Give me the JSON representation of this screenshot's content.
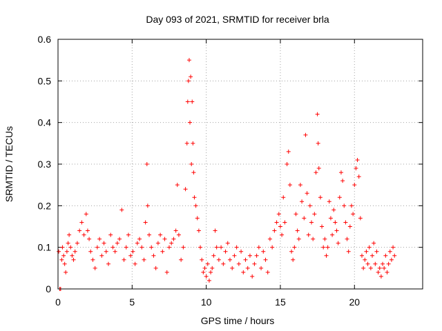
{
  "chart_data": {
    "type": "scatter",
    "title": "Day 093 of 2021, SRMTID for receiver brla",
    "xlabel": "GPS time / hours",
    "ylabel": "SRMTID / TECUs",
    "xlim": [
      0,
      24.6
    ],
    "ylim": [
      0,
      0.6
    ],
    "xticks": [
      0,
      5,
      10,
      15,
      20
    ],
    "xtick_labels": [
      "0",
      "5",
      "10",
      "15",
      "20"
    ],
    "yticks": [
      0,
      0.1,
      0.2,
      0.3,
      0.4,
      0.5,
      0.6
    ],
    "ytick_labels": [
      "0",
      "0.1",
      "0.2",
      "0.3",
      "0.4",
      "0.5",
      "0.6"
    ],
    "grid": true,
    "marker": "+",
    "color": "#ff0000",
    "series": [
      {
        "name": "SRMTID",
        "points": [
          [
            0.05,
            0.09
          ],
          [
            0.12,
            0.0
          ],
          [
            0.18,
            0.0
          ],
          [
            0.25,
            0.07
          ],
          [
            0.3,
            0.1
          ],
          [
            0.38,
            0.08
          ],
          [
            0.45,
            0.06
          ],
          [
            0.52,
            0.04
          ],
          [
            0.6,
            0.09
          ],
          [
            0.68,
            0.11
          ],
          [
            0.75,
            0.13
          ],
          [
            0.85,
            0.1
          ],
          [
            0.95,
            0.08
          ],
          [
            1.05,
            0.07
          ],
          [
            1.15,
            0.09
          ],
          [
            1.3,
            0.11
          ],
          [
            1.45,
            0.14
          ],
          [
            1.6,
            0.16
          ],
          [
            1.75,
            0.13
          ],
          [
            1.9,
            0.18
          ],
          [
            2.0,
            0.14
          ],
          [
            2.1,
            0.12
          ],
          [
            2.2,
            0.09
          ],
          [
            2.35,
            0.07
          ],
          [
            2.5,
            0.05
          ],
          [
            2.65,
            0.1
          ],
          [
            2.8,
            0.12
          ],
          [
            2.95,
            0.08
          ],
          [
            3.1,
            0.11
          ],
          [
            3.25,
            0.09
          ],
          [
            3.4,
            0.06
          ],
          [
            3.55,
            0.13
          ],
          [
            3.7,
            0.1
          ],
          [
            3.85,
            0.09
          ],
          [
            4.0,
            0.11
          ],
          [
            4.15,
            0.12
          ],
          [
            4.3,
            0.19
          ],
          [
            4.45,
            0.07
          ],
          [
            4.6,
            0.1
          ],
          [
            4.75,
            0.13
          ],
          [
            4.9,
            0.08
          ],
          [
            5.05,
            0.09
          ],
          [
            5.2,
            0.06
          ],
          [
            5.35,
            0.11
          ],
          [
            5.5,
            0.12
          ],
          [
            5.65,
            0.1
          ],
          [
            5.8,
            0.07
          ],
          [
            5.9,
            0.16
          ],
          [
            6.0,
            0.3
          ],
          [
            6.05,
            0.2
          ],
          [
            6.15,
            0.13
          ],
          [
            6.3,
            0.1
          ],
          [
            6.45,
            0.08
          ],
          [
            6.6,
            0.05
          ],
          [
            6.75,
            0.11
          ],
          [
            6.9,
            0.13
          ],
          [
            7.05,
            0.09
          ],
          [
            7.2,
            0.12
          ],
          [
            7.35,
            0.04
          ],
          [
            7.5,
            0.1
          ],
          [
            7.65,
            0.11
          ],
          [
            7.8,
            0.12
          ],
          [
            7.95,
            0.14
          ],
          [
            8.05,
            0.25
          ],
          [
            8.15,
            0.13
          ],
          [
            8.3,
            0.07
          ],
          [
            8.45,
            0.1
          ],
          [
            8.6,
            0.24
          ],
          [
            8.7,
            0.35
          ],
          [
            8.75,
            0.45
          ],
          [
            8.8,
            0.5
          ],
          [
            8.85,
            0.55
          ],
          [
            8.9,
            0.4
          ],
          [
            8.95,
            0.51
          ],
          [
            9.0,
            0.3
          ],
          [
            9.05,
            0.45
          ],
          [
            9.1,
            0.35
          ],
          [
            9.15,
            0.28
          ],
          [
            9.2,
            0.22
          ],
          [
            9.3,
            0.2
          ],
          [
            9.4,
            0.17
          ],
          [
            9.5,
            0.14
          ],
          [
            9.6,
            0.1
          ],
          [
            9.7,
            0.07
          ],
          [
            9.8,
            0.04
          ],
          [
            9.9,
            0.05
          ],
          [
            10.0,
            0.03
          ],
          [
            10.1,
            0.06
          ],
          [
            10.2,
            0.02
          ],
          [
            10.3,
            0.04
          ],
          [
            10.4,
            0.05
          ],
          [
            10.5,
            0.08
          ],
          [
            10.6,
            0.14
          ],
          [
            10.7,
            0.1
          ],
          [
            10.85,
            0.07
          ],
          [
            11.0,
            0.1
          ],
          [
            11.15,
            0.06
          ],
          [
            11.3,
            0.09
          ],
          [
            11.45,
            0.11
          ],
          [
            11.6,
            0.07
          ],
          [
            11.75,
            0.05
          ],
          [
            11.9,
            0.08
          ],
          [
            12.05,
            0.1
          ],
          [
            12.2,
            0.06
          ],
          [
            12.35,
            0.09
          ],
          [
            12.5,
            0.04
          ],
          [
            12.65,
            0.07
          ],
          [
            12.8,
            0.05
          ],
          [
            12.95,
            0.08
          ],
          [
            13.1,
            0.03
          ],
          [
            13.25,
            0.06
          ],
          [
            13.4,
            0.08
          ],
          [
            13.55,
            0.1
          ],
          [
            13.7,
            0.05
          ],
          [
            13.85,
            0.09
          ],
          [
            14.0,
            0.07
          ],
          [
            14.15,
            0.04
          ],
          [
            14.3,
            0.12
          ],
          [
            14.45,
            0.1
          ],
          [
            14.6,
            0.14
          ],
          [
            14.75,
            0.16
          ],
          [
            14.9,
            0.18
          ],
          [
            15.0,
            0.15
          ],
          [
            15.1,
            0.13
          ],
          [
            15.2,
            0.22
          ],
          [
            15.3,
            0.16
          ],
          [
            15.45,
            0.3
          ],
          [
            15.55,
            0.33
          ],
          [
            15.65,
            0.25
          ],
          [
            15.75,
            0.09
          ],
          [
            15.85,
            0.07
          ],
          [
            15.95,
            0.1
          ],
          [
            16.05,
            0.18
          ],
          [
            16.15,
            0.14
          ],
          [
            16.25,
            0.12
          ],
          [
            16.35,
            0.25
          ],
          [
            16.45,
            0.21
          ],
          [
            16.6,
            0.17
          ],
          [
            16.7,
            0.37
          ],
          [
            16.8,
            0.23
          ],
          [
            16.9,
            0.13
          ],
          [
            17.0,
            0.2
          ],
          [
            17.1,
            0.16
          ],
          [
            17.2,
            0.12
          ],
          [
            17.3,
            0.18
          ],
          [
            17.4,
            0.28
          ],
          [
            17.5,
            0.42
          ],
          [
            17.55,
            0.35
          ],
          [
            17.6,
            0.29
          ],
          [
            17.7,
            0.22
          ],
          [
            17.8,
            0.15
          ],
          [
            17.9,
            0.1
          ],
          [
            18.0,
            0.12
          ],
          [
            18.1,
            0.08
          ],
          [
            18.2,
            0.1
          ],
          [
            18.3,
            0.21
          ],
          [
            18.4,
            0.17
          ],
          [
            18.5,
            0.13
          ],
          [
            18.6,
            0.19
          ],
          [
            18.7,
            0.16
          ],
          [
            18.8,
            0.14
          ],
          [
            18.9,
            0.11
          ],
          [
            19.0,
            0.22
          ],
          [
            19.1,
            0.28
          ],
          [
            19.2,
            0.26
          ],
          [
            19.3,
            0.2
          ],
          [
            19.4,
            0.16
          ],
          [
            19.5,
            0.12
          ],
          [
            19.6,
            0.09
          ],
          [
            19.7,
            0.15
          ],
          [
            19.8,
            0.2
          ],
          [
            19.9,
            0.18
          ],
          [
            20.0,
            0.25
          ],
          [
            20.1,
            0.29
          ],
          [
            20.2,
            0.31
          ],
          [
            20.3,
            0.27
          ],
          [
            20.4,
            0.17
          ],
          [
            20.5,
            0.08
          ],
          [
            20.6,
            0.05
          ],
          [
            20.7,
            0.07
          ],
          [
            20.8,
            0.09
          ],
          [
            20.9,
            0.06
          ],
          [
            21.0,
            0.1
          ],
          [
            21.1,
            0.05
          ],
          [
            21.2,
            0.08
          ],
          [
            21.3,
            0.11
          ],
          [
            21.4,
            0.06
          ],
          [
            21.5,
            0.09
          ],
          [
            21.6,
            0.04
          ],
          [
            21.7,
            0.05
          ],
          [
            21.8,
            0.03
          ],
          [
            21.9,
            0.06
          ],
          [
            22.0,
            0.05
          ],
          [
            22.1,
            0.08
          ],
          [
            22.2,
            0.04
          ],
          [
            22.3,
            0.06
          ],
          [
            22.4,
            0.09
          ],
          [
            22.5,
            0.07
          ],
          [
            22.6,
            0.1
          ],
          [
            22.7,
            0.08
          ]
        ]
      }
    ]
  }
}
